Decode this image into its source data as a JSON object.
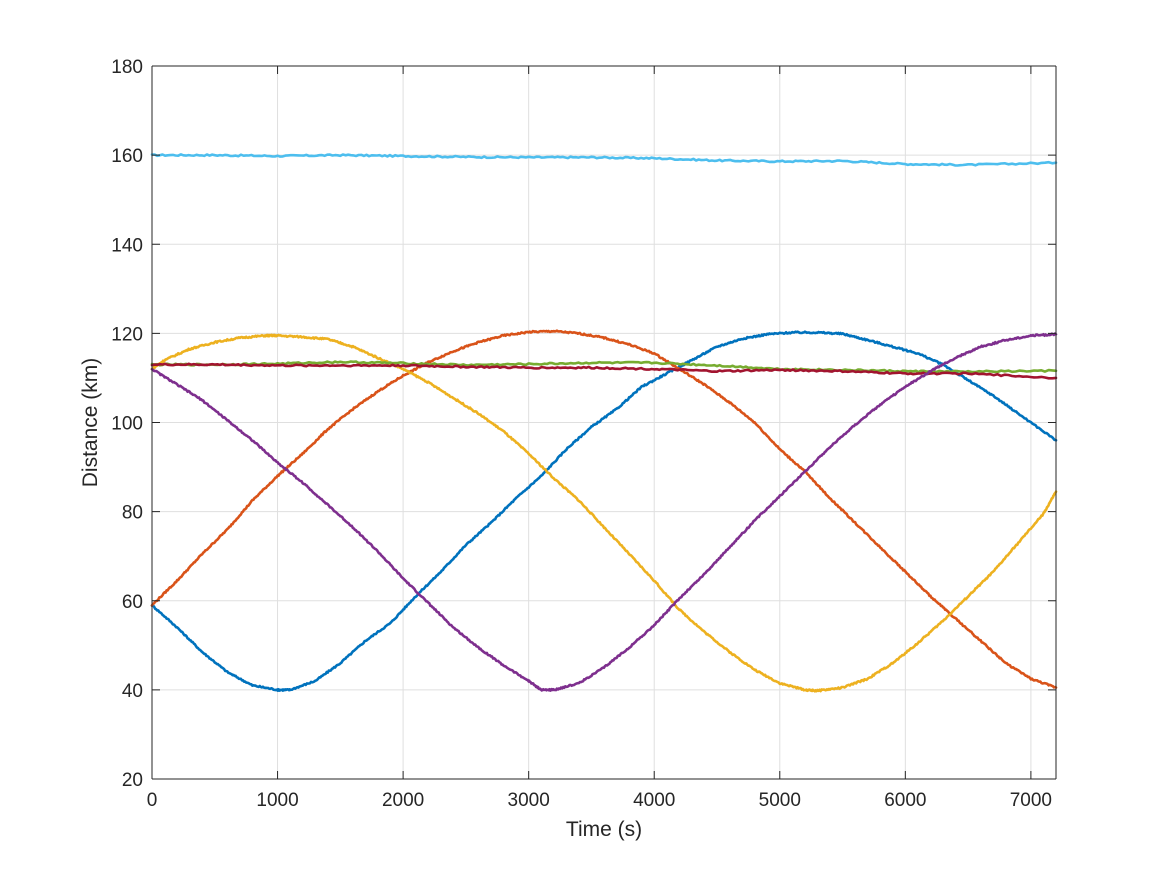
{
  "chart_data": {
    "type": "line",
    "title": "",
    "xlabel": "Time (s)",
    "ylabel": "Distance (km)",
    "xlim": [
      0,
      7200
    ],
    "ylim": [
      20,
      180
    ],
    "xticks": [
      0,
      1000,
      2000,
      3000,
      4000,
      5000,
      6000,
      7000
    ],
    "yticks": [
      20,
      40,
      60,
      80,
      100,
      120,
      140,
      160,
      180
    ],
    "grid": true,
    "legend": "none",
    "colors": {
      "axis": "#262626",
      "grid": "#dfdfdf",
      "background": "#ffffff"
    },
    "series": [
      {
        "color": "#4DBEEE",
        "points": [
          [
            0,
            160
          ],
          [
            500,
            160
          ],
          [
            1000,
            159.8
          ],
          [
            1500,
            160
          ],
          [
            2000,
            159.8
          ],
          [
            2500,
            159.6
          ],
          [
            3000,
            159.5
          ],
          [
            3500,
            159.5
          ],
          [
            4000,
            159.3
          ],
          [
            4500,
            158.8
          ],
          [
            5000,
            158.6
          ],
          [
            5500,
            158.7
          ],
          [
            6000,
            158
          ],
          [
            6500,
            157.8
          ],
          [
            7200,
            158.3
          ]
        ]
      },
      {
        "color": "#0072BD",
        "points": [
          [
            0,
            59
          ],
          [
            200,
            54
          ],
          [
            400,
            48.5
          ],
          [
            600,
            44
          ],
          [
            800,
            41
          ],
          [
            1000,
            40
          ],
          [
            1100,
            40
          ],
          [
            1300,
            42
          ],
          [
            1500,
            46
          ],
          [
            1700,
            51
          ],
          [
            1900,
            55
          ],
          [
            2100,
            61
          ],
          [
            2300,
            66.5
          ],
          [
            2500,
            72.5
          ],
          [
            2700,
            77.5
          ],
          [
            2900,
            83
          ],
          [
            3100,
            88
          ],
          [
            3300,
            94
          ],
          [
            3500,
            99
          ],
          [
            3700,
            103
          ],
          [
            3900,
            108
          ],
          [
            4100,
            111
          ],
          [
            4300,
            114
          ],
          [
            4500,
            117
          ],
          [
            4700,
            118.8
          ],
          [
            4900,
            119.8
          ],
          [
            5100,
            120.2
          ],
          [
            5300,
            120.2
          ],
          [
            5500,
            119.9
          ],
          [
            5700,
            118.5
          ],
          [
            5900,
            117
          ],
          [
            6100,
            115.5
          ],
          [
            6300,
            113
          ],
          [
            6500,
            109.5
          ],
          [
            6700,
            106
          ],
          [
            6900,
            102
          ],
          [
            7200,
            96
          ]
        ]
      },
      {
        "color": "#D95319",
        "points": [
          [
            0,
            59
          ],
          [
            200,
            64.5
          ],
          [
            400,
            70.5
          ],
          [
            600,
            76
          ],
          [
            800,
            82.5
          ],
          [
            1000,
            88
          ],
          [
            1200,
            93
          ],
          [
            1400,
            98.5
          ],
          [
            1600,
            103
          ],
          [
            1800,
            107
          ],
          [
            2000,
            110.5
          ],
          [
            2200,
            113.5
          ],
          [
            2400,
            116
          ],
          [
            2600,
            118
          ],
          [
            2800,
            119.5
          ],
          [
            3000,
            120.3
          ],
          [
            3200,
            120.5
          ],
          [
            3400,
            120
          ],
          [
            3600,
            119
          ],
          [
            3800,
            117.5
          ],
          [
            4000,
            115.5
          ],
          [
            4200,
            112
          ],
          [
            4400,
            108.5
          ],
          [
            4600,
            104.5
          ],
          [
            4800,
            100
          ],
          [
            5000,
            94
          ],
          [
            5200,
            89
          ],
          [
            5400,
            83
          ],
          [
            5600,
            77.5
          ],
          [
            5800,
            72
          ],
          [
            6000,
            66.5
          ],
          [
            6200,
            61
          ],
          [
            6400,
            56
          ],
          [
            6600,
            51
          ],
          [
            6800,
            46
          ],
          [
            7000,
            42.5
          ],
          [
            7200,
            40.5
          ]
        ]
      },
      {
        "color": "#EDB120",
        "points": [
          [
            0,
            112
          ],
          [
            100,
            114
          ],
          [
            300,
            116.5
          ],
          [
            500,
            118
          ],
          [
            700,
            119
          ],
          [
            900,
            119.5
          ],
          [
            1000,
            119.5
          ],
          [
            1200,
            119.2
          ],
          [
            1400,
            118.7
          ],
          [
            1600,
            117
          ],
          [
            1800,
            114.5
          ],
          [
            2000,
            112
          ],
          [
            2200,
            109
          ],
          [
            2400,
            105.5
          ],
          [
            2600,
            102
          ],
          [
            2800,
            98
          ],
          [
            3000,
            93
          ],
          [
            3200,
            87.5
          ],
          [
            3400,
            82.5
          ],
          [
            3600,
            76.5
          ],
          [
            3800,
            70.5
          ],
          [
            4000,
            64.5
          ],
          [
            4200,
            58
          ],
          [
            4400,
            53
          ],
          [
            4600,
            48.5
          ],
          [
            4800,
            44.5
          ],
          [
            5000,
            41.5
          ],
          [
            5200,
            40
          ],
          [
            5300,
            39.8
          ],
          [
            5500,
            40.5
          ],
          [
            5700,
            42.5
          ],
          [
            5900,
            46
          ],
          [
            6100,
            50.5
          ],
          [
            6300,
            55.5
          ],
          [
            6500,
            61
          ],
          [
            6700,
            66.5
          ],
          [
            6900,
            73
          ],
          [
            7100,
            79.5
          ],
          [
            7200,
            84.5
          ]
        ]
      },
      {
        "color": "#77AC30",
        "points": [
          [
            0,
            113
          ],
          [
            500,
            113
          ],
          [
            1000,
            113.2
          ],
          [
            1500,
            113.6
          ],
          [
            2000,
            113.3
          ],
          [
            2500,
            112.9
          ],
          [
            3000,
            113.1
          ],
          [
            3500,
            113.4
          ],
          [
            4000,
            113.4
          ],
          [
            4500,
            112.8
          ],
          [
            5000,
            112
          ],
          [
            5500,
            111.8
          ],
          [
            6000,
            111.5
          ],
          [
            6500,
            111.4
          ],
          [
            7200,
            111.6
          ]
        ]
      },
      {
        "color": "#A2142F",
        "points": [
          [
            0,
            113
          ],
          [
            500,
            113
          ],
          [
            1000,
            112.8
          ],
          [
            1500,
            112.8
          ],
          [
            2000,
            112.8
          ],
          [
            2500,
            112.5
          ],
          [
            3000,
            112.3
          ],
          [
            3500,
            112.3
          ],
          [
            4000,
            112
          ],
          [
            4500,
            111.5
          ],
          [
            5000,
            111.8
          ],
          [
            5500,
            111.5
          ],
          [
            6000,
            111
          ],
          [
            6500,
            111
          ],
          [
            7200,
            110
          ]
        ]
      },
      {
        "color": "#7E2F8E",
        "points": [
          [
            0,
            112
          ],
          [
            200,
            108.5
          ],
          [
            400,
            105
          ],
          [
            600,
            100.5
          ],
          [
            800,
            96
          ],
          [
            1000,
            91
          ],
          [
            1200,
            86.5
          ],
          [
            1400,
            81.5
          ],
          [
            1600,
            76.5
          ],
          [
            1800,
            71
          ],
          [
            2000,
            65
          ],
          [
            2200,
            59.5
          ],
          [
            2400,
            54
          ],
          [
            2600,
            49.5
          ],
          [
            2800,
            45.5
          ],
          [
            3000,
            42
          ],
          [
            3100,
            40
          ],
          [
            3200,
            40
          ],
          [
            3400,
            41.5
          ],
          [
            3600,
            45
          ],
          [
            3800,
            49.5
          ],
          [
            4000,
            54.5
          ],
          [
            4200,
            60.5
          ],
          [
            4400,
            66
          ],
          [
            4600,
            72
          ],
          [
            4800,
            78
          ],
          [
            5000,
            83.5
          ],
          [
            5200,
            89
          ],
          [
            5400,
            94.5
          ],
          [
            5600,
            99.5
          ],
          [
            5800,
            104
          ],
          [
            6000,
            108
          ],
          [
            6200,
            111.5
          ],
          [
            6400,
            114.5
          ],
          [
            6600,
            117
          ],
          [
            6800,
            118.5
          ],
          [
            7000,
            119.5
          ],
          [
            7200,
            119.8
          ]
        ]
      }
    ]
  }
}
